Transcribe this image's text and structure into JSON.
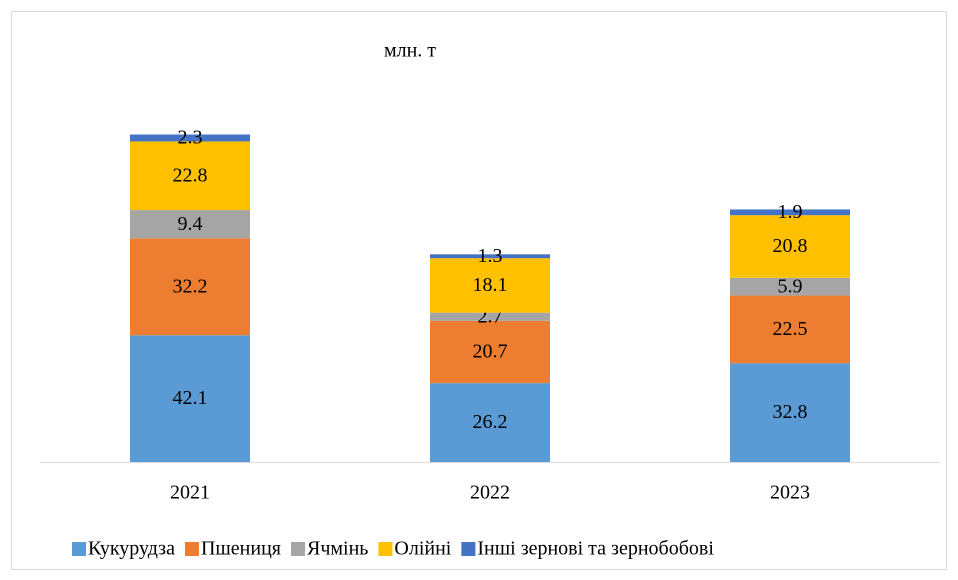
{
  "chart_data": {
    "type": "stacked_bar",
    "title": "млн. т",
    "categories": [
      "2021",
      "2022",
      "2023"
    ],
    "series": [
      {
        "name": "Кукурудза",
        "color": "#5b9bd5",
        "values": [
          42.1,
          26.2,
          32.8
        ]
      },
      {
        "name": "Пшениця",
        "color": "#ed7d31",
        "values": [
          32.2,
          20.7,
          22.5
        ]
      },
      {
        "name": "Ячмінь",
        "color": "#a5a5a5",
        "values": [
          9.4,
          2.7,
          5.9
        ]
      },
      {
        "name": "Олійні",
        "color": "#ffc000",
        "values": [
          22.8,
          18.1,
          20.8
        ]
      },
      {
        "name": "Інші зернові та зернобобові",
        "color": "#4472c4",
        "values": [
          2.3,
          1.3,
          1.9
        ]
      }
    ],
    "legend": "bottom"
  }
}
